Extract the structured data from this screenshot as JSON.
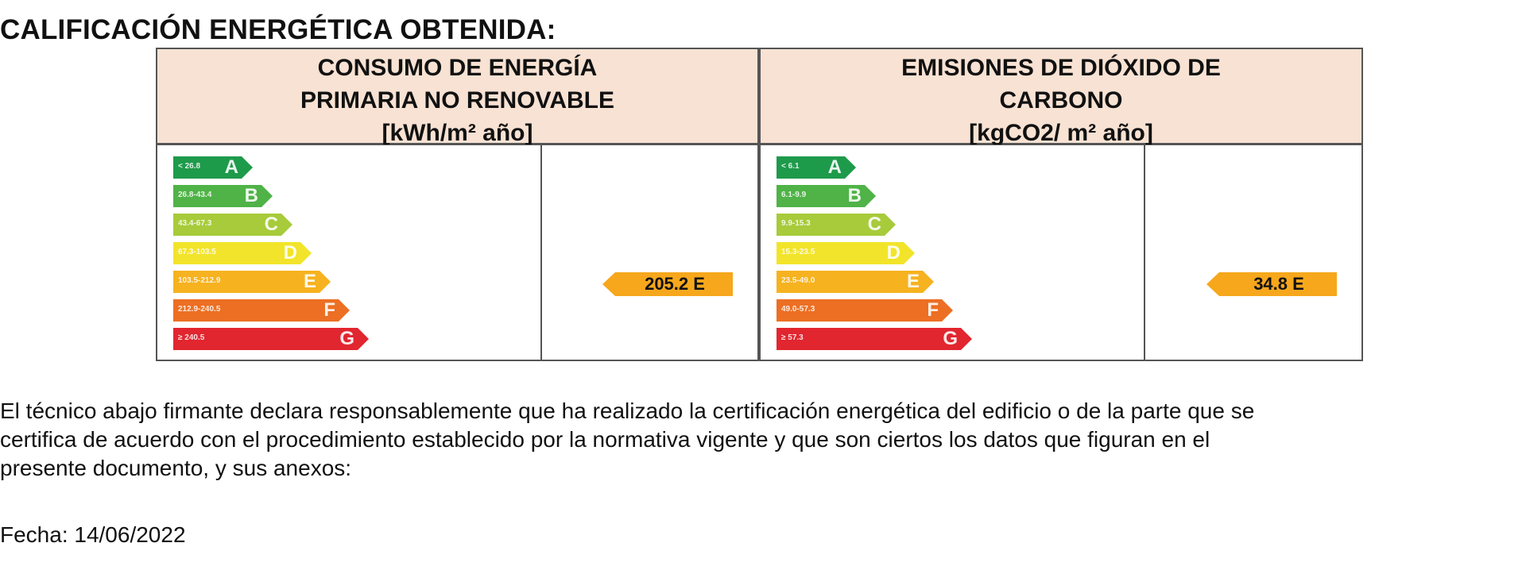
{
  "title": "CALIFICACIÓN ENERGÉTICA OBTENIDA:",
  "panels": [
    {
      "header": [
        "CONSUMO DE ENERGÍA",
        "PRIMARIA NO RENOVABLE",
        "[kWh/m² año]"
      ],
      "scale": [
        {
          "range": "< 26.8",
          "letter": "A",
          "color": "#1e9a4b"
        },
        {
          "range": "26.8-43.4",
          "letter": "B",
          "color": "#4fb347"
        },
        {
          "range": "43.4-67.3",
          "letter": "C",
          "color": "#a7cb3a"
        },
        {
          "range": "67.3-103.5",
          "letter": "D",
          "color": "#f2e42a"
        },
        {
          "range": "103.5-212.9",
          "letter": "E",
          "color": "#f6b21f"
        },
        {
          "range": "212.9-240.5",
          "letter": "F",
          "color": "#ec6f23"
        },
        {
          "range": "≥ 240.5",
          "letter": "G",
          "color": "#e1262f"
        }
      ],
      "result": "205.2 E",
      "result_color": "#f6a71c"
    },
    {
      "header": [
        "EMISIONES DE DIÓXIDO DE",
        "CARBONO",
        "[kgCO2/ m² año]"
      ],
      "scale": [
        {
          "range": "< 6.1",
          "letter": "A",
          "color": "#1e9a4b"
        },
        {
          "range": "6.1-9.9",
          "letter": "B",
          "color": "#4fb347"
        },
        {
          "range": "9.9-15.3",
          "letter": "C",
          "color": "#a7cb3a"
        },
        {
          "range": "15.3-23.5",
          "letter": "D",
          "color": "#f2e42a"
        },
        {
          "range": "23.5-49.0",
          "letter": "E",
          "color": "#f6b21f"
        },
        {
          "range": "49.0-57.3",
          "letter": "F",
          "color": "#ec6f23"
        },
        {
          "range": "≥ 57.3",
          "letter": "G",
          "color": "#e1262f"
        }
      ],
      "result": "34.8 E",
      "result_color": "#f6a71c"
    }
  ],
  "declaration": [
    "El técnico abajo firmante declara responsablemente que ha realizado la certificación energética del edificio o de la parte que se",
    "certifica de acuerdo con el procedimiento establecido por la normativa vigente y que son ciertos los datos que figuran en el",
    "presente documento, y sus anexos:"
  ],
  "fecha": "Fecha: 14/06/2022"
}
